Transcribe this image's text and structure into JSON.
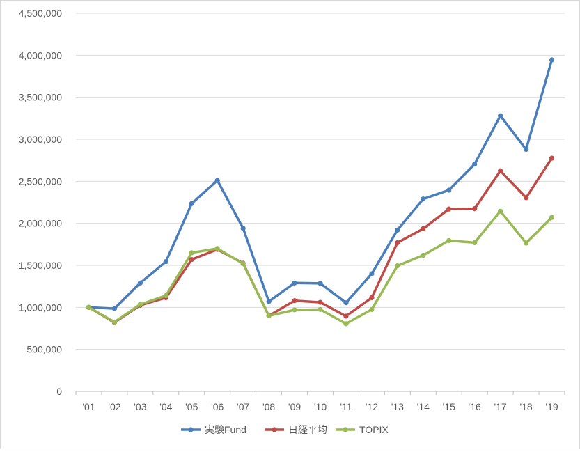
{
  "chart_data": {
    "type": "line",
    "title": "",
    "xlabel": "",
    "ylabel": "",
    "categories": [
      "'01",
      "'02",
      "'03",
      "'04",
      "'05",
      "'06",
      "'07",
      "'08",
      "'09",
      "'10",
      "'11",
      "'12",
      "'13",
      "'14",
      "'15",
      "'16",
      "'17",
      "'18",
      "'19"
    ],
    "ylim": [
      0,
      4500000
    ],
    "yticks": [
      0,
      500000,
      1000000,
      1500000,
      2000000,
      2500000,
      3000000,
      3500000,
      4000000,
      4500000
    ],
    "ytick_labels": [
      "0",
      "500,000",
      "1,000,000",
      "1,500,000",
      "2,000,000",
      "2,500,000",
      "3,000,000",
      "3,500,000",
      "4,000,000",
      "4,500,000"
    ],
    "grid": true,
    "legend_position": "bottom",
    "series": [
      {
        "name": "実験Fund",
        "color": "#4a7ebb",
        "values": [
          1000000,
          985000,
          1290000,
          1545000,
          2235000,
          2510000,
          1940000,
          1070000,
          1290000,
          1285000,
          1055000,
          1400000,
          1920000,
          2290000,
          2395000,
          2705000,
          3280000,
          2880000,
          3945000
        ]
      },
      {
        "name": "日経平均",
        "color": "#be4b48",
        "values": [
          1000000,
          820000,
          1025000,
          1115000,
          1570000,
          1690000,
          1525000,
          900000,
          1080000,
          1060000,
          895000,
          1115000,
          1770000,
          1935000,
          2170000,
          2175000,
          2625000,
          2305000,
          2775000
        ]
      },
      {
        "name": "TOPIX",
        "color": "#98b954",
        "values": [
          1000000,
          825000,
          1035000,
          1140000,
          1650000,
          1700000,
          1520000,
          900000,
          970000,
          975000,
          805000,
          975000,
          1495000,
          1620000,
          1795000,
          1770000,
          2145000,
          1765000,
          2070000
        ]
      }
    ]
  }
}
